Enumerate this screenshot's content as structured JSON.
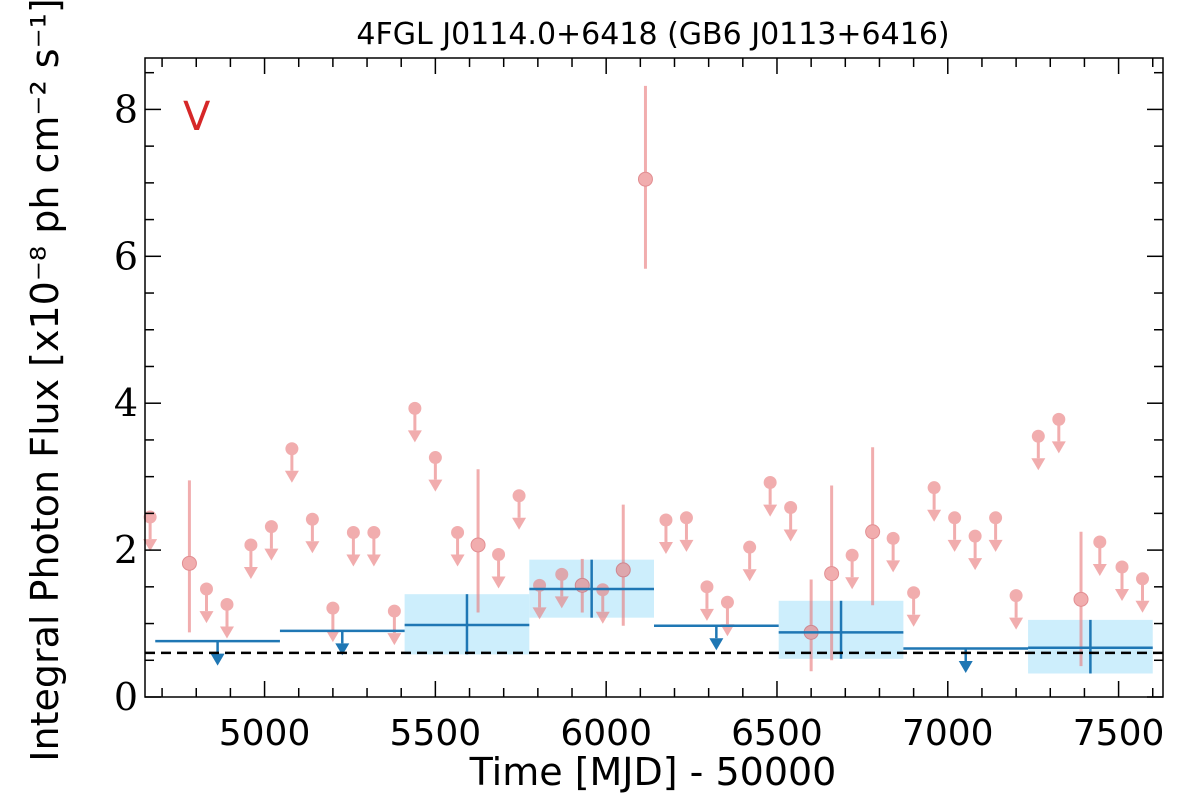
{
  "chart_data": {
    "type": "scatter",
    "title": "4FGL J0114.0+6418 (GB6 J0113+6416)",
    "xlabel": "Time [MJD] - 50000",
    "ylabel": "Integral Photon Flux [x10⁻⁸ ph cm⁻² s⁻¹]",
    "xlim": [
      4650,
      7630
    ],
    "ylim": [
      0,
      8.7
    ],
    "x_ticks": [
      5000,
      5500,
      6000,
      6500,
      7000,
      7500
    ],
    "y_ticks": [
      0,
      2,
      4,
      6,
      8
    ],
    "annotation": "V",
    "colors": {
      "points": "#e8787a",
      "bins": "#1f77b4",
      "band": "#cdeefc",
      "annotation": "#d62728",
      "baseline": "#000000"
    },
    "baseline": 0.6,
    "short_bins": {
      "name": "",
      "measurements": [
        {
          "x": 4780,
          "y": 1.82,
          "lo": 0.88,
          "hi": 2.95
        },
        {
          "x": 5625,
          "y": 2.07,
          "lo": 1.15,
          "hi": 3.1
        },
        {
          "x": 5930,
          "y": 1.52,
          "lo": 1.15,
          "hi": 1.88
        },
        {
          "x": 6050,
          "y": 1.73,
          "lo": 0.97,
          "hi": 2.62
        },
        {
          "x": 6115,
          "y": 7.05,
          "lo": 5.83,
          "hi": 8.32
        },
        {
          "x": 6600,
          "y": 0.88,
          "lo": 0.35,
          "hi": 1.6
        },
        {
          "x": 6660,
          "y": 1.68,
          "lo": 0.5,
          "hi": 2.88
        },
        {
          "x": 6780,
          "y": 2.25,
          "lo": 1.25,
          "hi": 3.4
        },
        {
          "x": 7390,
          "y": 1.33,
          "lo": 0.42,
          "hi": 2.25
        }
      ],
      "upper_limits": [
        {
          "x": 4665,
          "y": 2.45
        },
        {
          "x": 4830,
          "y": 1.47
        },
        {
          "x": 4890,
          "y": 1.26
        },
        {
          "x": 4960,
          "y": 2.07
        },
        {
          "x": 5020,
          "y": 2.32
        },
        {
          "x": 5080,
          "y": 3.38
        },
        {
          "x": 5140,
          "y": 2.42
        },
        {
          "x": 5200,
          "y": 1.21
        },
        {
          "x": 5260,
          "y": 2.24
        },
        {
          "x": 5320,
          "y": 2.24
        },
        {
          "x": 5380,
          "y": 1.17
        },
        {
          "x": 5440,
          "y": 3.93
        },
        {
          "x": 5500,
          "y": 3.26
        },
        {
          "x": 5565,
          "y": 2.24
        },
        {
          "x": 5685,
          "y": 1.94
        },
        {
          "x": 5745,
          "y": 2.74
        },
        {
          "x": 5805,
          "y": 1.52
        },
        {
          "x": 5870,
          "y": 1.67
        },
        {
          "x": 5990,
          "y": 1.46
        },
        {
          "x": 6175,
          "y": 2.41
        },
        {
          "x": 6235,
          "y": 2.44
        },
        {
          "x": 6295,
          "y": 1.5
        },
        {
          "x": 6355,
          "y": 1.29
        },
        {
          "x": 6420,
          "y": 2.04
        },
        {
          "x": 6480,
          "y": 2.92
        },
        {
          "x": 6540,
          "y": 2.58
        },
        {
          "x": 6720,
          "y": 1.93
        },
        {
          "x": 6840,
          "y": 2.16
        },
        {
          "x": 6900,
          "y": 1.42
        },
        {
          "x": 6960,
          "y": 2.85
        },
        {
          "x": 7020,
          "y": 2.44
        },
        {
          "x": 7080,
          "y": 2.19
        },
        {
          "x": 7140,
          "y": 2.44
        },
        {
          "x": 7200,
          "y": 1.38
        },
        {
          "x": 7265,
          "y": 3.55
        },
        {
          "x": 7325,
          "y": 3.78
        },
        {
          "x": 7445,
          "y": 2.11
        },
        {
          "x": 7510,
          "y": 1.77
        },
        {
          "x": 7570,
          "y": 1.61
        }
      ]
    },
    "long_bins": {
      "name": "",
      "measurements": [
        {
          "x0": 5410,
          "x1": 5775,
          "y": 0.98,
          "lo": 0.58,
          "hi": 1.4
        },
        {
          "x0": 5775,
          "x1": 6140,
          "y": 1.47,
          "lo": 1.08,
          "hi": 1.87
        },
        {
          "x0": 6505,
          "x1": 6870,
          "y": 0.88,
          "lo": 0.52,
          "hi": 1.31
        },
        {
          "x0": 7235,
          "x1": 7600,
          "y": 0.67,
          "lo": 0.32,
          "hi": 1.05
        }
      ],
      "upper_limits": [
        {
          "x0": 4680,
          "x1": 5045,
          "y": 0.76
        },
        {
          "x0": 5045,
          "x1": 5410,
          "y": 0.9
        },
        {
          "x0": 6140,
          "x1": 6505,
          "y": 0.97
        },
        {
          "x0": 6870,
          "x1": 7235,
          "y": 0.66
        }
      ]
    }
  }
}
